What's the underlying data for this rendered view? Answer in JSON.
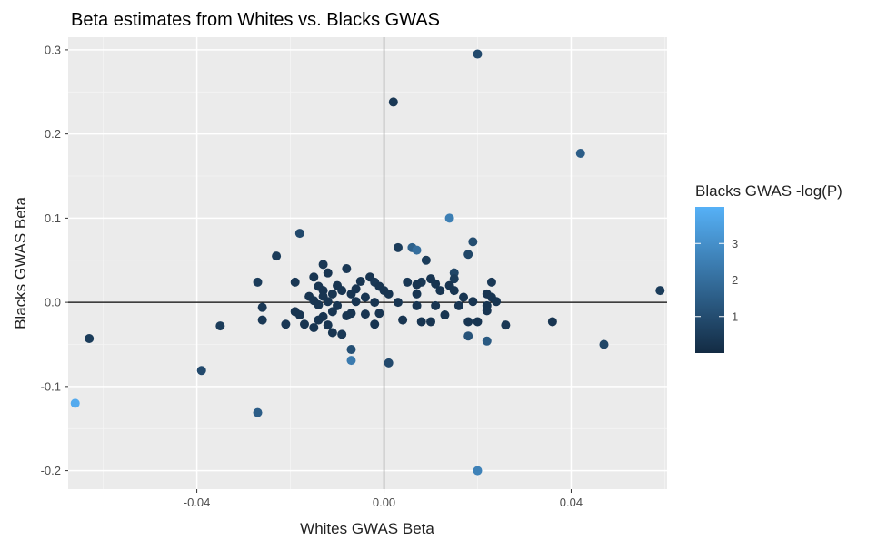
{
  "chart_data": {
    "type": "scatter",
    "title": "Beta estimates from Whites vs. Blacks GWAS",
    "xlabel": "Whites GWAS Beta",
    "ylabel": "Blacks GWAS Beta",
    "xlim": [
      -0.0675,
      0.0605
    ],
    "ylim": [
      -0.222,
      0.315
    ],
    "xticks": [
      -0.04,
      0.0,
      0.04
    ],
    "xtick_labels": [
      "-0.04",
      "0.00",
      "0.04"
    ],
    "yticks": [
      -0.2,
      -0.1,
      0.0,
      0.1,
      0.2,
      0.3
    ],
    "ytick_labels": [
      "-0.2",
      "-0.1",
      "0.0",
      "0.1",
      "0.2",
      "0.3"
    ],
    "grid": true,
    "reference_lines": {
      "x": 0,
      "y": 0
    },
    "color_scale": {
      "title": "Blacks GWAS -log(P)",
      "ticks": [
        1,
        2,
        3
      ],
      "tick_labels": [
        "1",
        "2",
        "3"
      ],
      "range": [
        0,
        4
      ],
      "low_color": "#132b43",
      "high_color": "#56b1f7"
    },
    "legend_position": "right",
    "points": [
      {
        "x": 0.02,
        "y": 0.295,
        "c": 0.9
      },
      {
        "x": 0.002,
        "y": 0.238,
        "c": 0.4
      },
      {
        "x": 0.042,
        "y": 0.177,
        "c": 1.5
      },
      {
        "x": 0.014,
        "y": 0.1,
        "c": 2.5
      },
      {
        "x": -0.018,
        "y": 0.082,
        "c": 0.9
      },
      {
        "x": 0.019,
        "y": 0.072,
        "c": 1.0
      },
      {
        "x": 0.003,
        "y": 0.065,
        "c": 0.5
      },
      {
        "x": 0.006,
        "y": 0.065,
        "c": 1.6
      },
      {
        "x": 0.007,
        "y": 0.062,
        "c": 2.0
      },
      {
        "x": 0.018,
        "y": 0.057,
        "c": 0.8
      },
      {
        "x": -0.023,
        "y": 0.055,
        "c": 0.5
      },
      {
        "x": 0.009,
        "y": 0.05,
        "c": 0.5
      },
      {
        "x": -0.013,
        "y": 0.045,
        "c": 0.4
      },
      {
        "x": -0.008,
        "y": 0.04,
        "c": 0.4
      },
      {
        "x": -0.012,
        "y": 0.035,
        "c": 0.3
      },
      {
        "x": 0.015,
        "y": 0.035,
        "c": 0.8
      },
      {
        "x": -0.015,
        "y": 0.03,
        "c": 0.3
      },
      {
        "x": -0.003,
        "y": 0.03,
        "c": 0.3
      },
      {
        "x": 0.01,
        "y": 0.028,
        "c": 0.3
      },
      {
        "x": 0.015,
        "y": 0.028,
        "c": 0.5
      },
      {
        "x": -0.005,
        "y": 0.025,
        "c": 0.3
      },
      {
        "x": -0.027,
        "y": 0.024,
        "c": 0.5
      },
      {
        "x": -0.019,
        "y": 0.024,
        "c": 0.4
      },
      {
        "x": -0.002,
        "y": 0.024,
        "c": 0.4
      },
      {
        "x": 0.005,
        "y": 0.024,
        "c": 0.4
      },
      {
        "x": 0.008,
        "y": 0.024,
        "c": 0.4
      },
      {
        "x": 0.023,
        "y": 0.024,
        "c": 0.4
      },
      {
        "x": 0.007,
        "y": 0.021,
        "c": 0.3
      },
      {
        "x": 0.011,
        "y": 0.022,
        "c": 0.3
      },
      {
        "x": -0.01,
        "y": 0.02,
        "c": 0.3
      },
      {
        "x": -0.014,
        "y": 0.019,
        "c": 0.3
      },
      {
        "x": -0.001,
        "y": 0.019,
        "c": 0.3
      },
      {
        "x": 0.014,
        "y": 0.02,
        "c": 0.3
      },
      {
        "x": -0.006,
        "y": 0.016,
        "c": 0.3
      },
      {
        "x": -0.013,
        "y": 0.014,
        "c": 0.3
      },
      {
        "x": -0.009,
        "y": 0.014,
        "c": 0.3
      },
      {
        "x": 0.0,
        "y": 0.014,
        "c": 0.3
      },
      {
        "x": 0.012,
        "y": 0.014,
        "c": 0.3
      },
      {
        "x": 0.015,
        "y": 0.014,
        "c": 0.3
      },
      {
        "x": 0.059,
        "y": 0.014,
        "c": 0.5
      },
      {
        "x": -0.011,
        "y": 0.01,
        "c": 0.3
      },
      {
        "x": -0.007,
        "y": 0.01,
        "c": 0.3
      },
      {
        "x": 0.001,
        "y": 0.01,
        "c": 0.3
      },
      {
        "x": 0.007,
        "y": 0.01,
        "c": 0.3
      },
      {
        "x": 0.022,
        "y": 0.01,
        "c": 0.3
      },
      {
        "x": -0.016,
        "y": 0.007,
        "c": 0.3
      },
      {
        "x": -0.013,
        "y": 0.007,
        "c": 0.3
      },
      {
        "x": -0.004,
        "y": 0.006,
        "c": 0.3
      },
      {
        "x": 0.017,
        "y": 0.006,
        "c": 0.3
      },
      {
        "x": 0.023,
        "y": 0.006,
        "c": 0.3
      },
      {
        "x": -0.015,
        "y": 0.002,
        "c": 0.3
      },
      {
        "x": -0.012,
        "y": 0.001,
        "c": 0.3
      },
      {
        "x": -0.006,
        "y": 0.001,
        "c": 0.3
      },
      {
        "x": -0.002,
        "y": 0.0,
        "c": 0.3
      },
      {
        "x": 0.003,
        "y": 0.0,
        "c": 0.3
      },
      {
        "x": 0.019,
        "y": 0.001,
        "c": 0.3
      },
      {
        "x": 0.024,
        "y": 0.001,
        "c": 0.3
      },
      {
        "x": -0.014,
        "y": -0.003,
        "c": 0.3
      },
      {
        "x": -0.01,
        "y": -0.004,
        "c": 0.3
      },
      {
        "x": 0.007,
        "y": -0.004,
        "c": 0.3
      },
      {
        "x": 0.011,
        "y": -0.004,
        "c": 0.3
      },
      {
        "x": 0.016,
        "y": -0.004,
        "c": 0.3
      },
      {
        "x": 0.022,
        "y": -0.004,
        "c": 0.3
      },
      {
        "x": -0.026,
        "y": -0.006,
        "c": 0.4
      },
      {
        "x": -0.019,
        "y": -0.011,
        "c": 0.3
      },
      {
        "x": -0.011,
        "y": -0.011,
        "c": 0.3
      },
      {
        "x": -0.007,
        "y": -0.013,
        "c": 0.3
      },
      {
        "x": -0.004,
        "y": -0.014,
        "c": 0.3
      },
      {
        "x": -0.001,
        "y": -0.013,
        "c": 0.3
      },
      {
        "x": -0.018,
        "y": -0.015,
        "c": 0.3
      },
      {
        "x": -0.013,
        "y": -0.017,
        "c": 0.3
      },
      {
        "x": -0.008,
        "y": -0.016,
        "c": 0.3
      },
      {
        "x": 0.013,
        "y": -0.015,
        "c": 0.3
      },
      {
        "x": 0.022,
        "y": -0.01,
        "c": 0.3
      },
      {
        "x": -0.026,
        "y": -0.021,
        "c": 0.4
      },
      {
        "x": -0.014,
        "y": -0.021,
        "c": 0.3
      },
      {
        "x": 0.004,
        "y": -0.021,
        "c": 0.3
      },
      {
        "x": 0.008,
        "y": -0.023,
        "c": 0.3
      },
      {
        "x": 0.01,
        "y": -0.023,
        "c": 0.3
      },
      {
        "x": 0.018,
        "y": -0.023,
        "c": 0.3
      },
      {
        "x": 0.02,
        "y": -0.023,
        "c": 0.3
      },
      {
        "x": 0.036,
        "y": -0.023,
        "c": 0.3
      },
      {
        "x": -0.035,
        "y": -0.028,
        "c": 0.5
      },
      {
        "x": -0.021,
        "y": -0.026,
        "c": 0.4
      },
      {
        "x": -0.017,
        "y": -0.026,
        "c": 0.3
      },
      {
        "x": -0.012,
        "y": -0.027,
        "c": 0.3
      },
      {
        "x": -0.002,
        "y": -0.026,
        "c": 0.3
      },
      {
        "x": 0.026,
        "y": -0.027,
        "c": 0.4
      },
      {
        "x": -0.015,
        "y": -0.03,
        "c": 0.3
      },
      {
        "x": -0.011,
        "y": -0.036,
        "c": 0.3
      },
      {
        "x": -0.009,
        "y": -0.038,
        "c": 0.4
      },
      {
        "x": 0.018,
        "y": -0.04,
        "c": 1.2
      },
      {
        "x": -0.063,
        "y": -0.043,
        "c": 0.5
      },
      {
        "x": 0.022,
        "y": -0.046,
        "c": 1.4
      },
      {
        "x": 0.047,
        "y": -0.05,
        "c": 0.8
      },
      {
        "x": -0.007,
        "y": -0.056,
        "c": 1.1
      },
      {
        "x": -0.007,
        "y": -0.069,
        "c": 2.4
      },
      {
        "x": 0.001,
        "y": -0.072,
        "c": 0.9
      },
      {
        "x": -0.039,
        "y": -0.081,
        "c": 0.9
      },
      {
        "x": -0.066,
        "y": -0.12,
        "c": 3.8
      },
      {
        "x": -0.027,
        "y": -0.131,
        "c": 1.5
      },
      {
        "x": 0.02,
        "y": -0.2,
        "c": 2.6
      }
    ]
  }
}
